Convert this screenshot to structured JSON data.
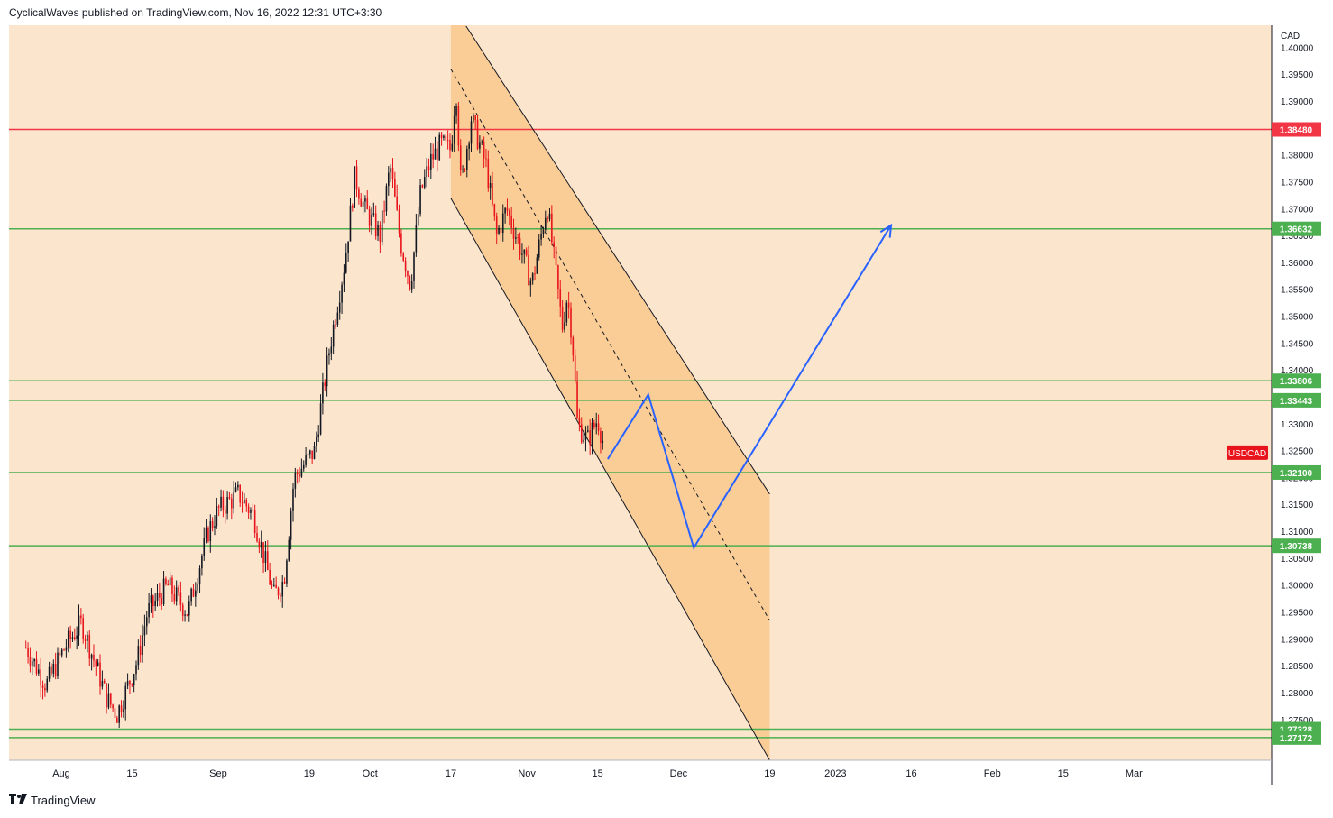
{
  "header": {
    "text": "CyclicalWaves published on TradingView.com, Nov 16, 2022 12:31 UTC+3:30"
  },
  "footer": {
    "brand": "TradingView",
    "logo_icon": "tradingview-logo-icon"
  },
  "colors": {
    "background": "#fbe5cd",
    "channel_fill": "#f9c98c",
    "red_level": "#f23645",
    "green_level": "#4caf50",
    "projection": "#2962ff",
    "candle_up": "#131722",
    "candle_down": "#e8131b",
    "symbol_label_bg": "#e8131b"
  },
  "chart_data": {
    "type": "candlestick",
    "symbol": "USDCAD",
    "currency": "CAD",
    "ylim": [
      1.2675,
      1.4035
    ],
    "y_ticks": [
      "1.40000",
      "1.39500",
      "1.39000",
      "1.38500",
      "1.38000",
      "1.37500",
      "1.37000",
      "1.36500",
      "1.36000",
      "1.35500",
      "1.35000",
      "1.34500",
      "1.34000",
      "1.33500",
      "1.33000",
      "1.32500",
      "1.32000",
      "1.31500",
      "1.31000",
      "1.30500",
      "1.30000",
      "1.29500",
      "1.29000",
      "1.28500",
      "1.28000",
      "1.27500"
    ],
    "x_ticks": [
      {
        "label": "Aug",
        "date": "2022-08-01"
      },
      {
        "label": "15",
        "date": "2022-08-15"
      },
      {
        "label": "Sep",
        "date": "2022-09-01"
      },
      {
        "label": "19",
        "date": "2022-09-19"
      },
      {
        "label": "Oct",
        "date": "2022-10-01"
      },
      {
        "label": "17",
        "date": "2022-10-17"
      },
      {
        "label": "Nov",
        "date": "2022-11-01"
      },
      {
        "label": "15",
        "date": "2022-11-15"
      },
      {
        "label": "Dec",
        "date": "2022-12-01"
      },
      {
        "label": "19",
        "date": "2022-12-19"
      },
      {
        "label": "2023",
        "date": "2023-01-01"
      },
      {
        "label": "16",
        "date": "2023-01-16"
      },
      {
        "label": "Feb",
        "date": "2023-02-01"
      },
      {
        "label": "15",
        "date": "2023-02-15"
      },
      {
        "label": "Mar",
        "date": "2023-03-01"
      }
    ],
    "price_path": [
      {
        "date": "2022-07-25",
        "value": 1.2885
      },
      {
        "date": "2022-07-29",
        "value": 1.2815
      },
      {
        "date": "2022-08-02",
        "value": 1.289
      },
      {
        "date": "2022-08-05",
        "value": 1.293
      },
      {
        "date": "2022-08-10",
        "value": 1.279
      },
      {
        "date": "2022-08-12",
        "value": 1.276
      },
      {
        "date": "2022-08-16",
        "value": 1.286
      },
      {
        "date": "2022-08-18",
        "value": 1.295
      },
      {
        "date": "2022-08-22",
        "value": 1.3
      },
      {
        "date": "2022-08-26",
        "value": 1.295
      },
      {
        "date": "2022-08-30",
        "value": 1.31
      },
      {
        "date": "2022-09-01",
        "value": 1.314
      },
      {
        "date": "2022-09-05",
        "value": 1.317
      },
      {
        "date": "2022-09-08",
        "value": 1.313
      },
      {
        "date": "2022-09-12",
        "value": 1.298
      },
      {
        "date": "2022-09-14",
        "value": 1.301
      },
      {
        "date": "2022-09-16",
        "value": 1.32
      },
      {
        "date": "2022-09-20",
        "value": 1.325
      },
      {
        "date": "2022-09-23",
        "value": 1.344
      },
      {
        "date": "2022-09-26",
        "value": 1.36
      },
      {
        "date": "2022-09-28",
        "value": 1.376
      },
      {
        "date": "2022-09-30",
        "value": 1.37
      },
      {
        "date": "2022-10-03",
        "value": 1.365
      },
      {
        "date": "2022-10-05",
        "value": 1.378
      },
      {
        "date": "2022-10-07",
        "value": 1.364
      },
      {
        "date": "2022-10-09",
        "value": 1.356
      },
      {
        "date": "2022-10-11",
        "value": 1.373
      },
      {
        "date": "2022-10-13",
        "value": 1.379
      },
      {
        "date": "2022-10-15",
        "value": 1.382
      },
      {
        "date": "2022-10-17",
        "value": 1.381
      },
      {
        "date": "2022-10-18",
        "value": 1.393
      },
      {
        "date": "2022-10-19",
        "value": 1.374
      },
      {
        "date": "2022-10-21",
        "value": 1.387
      },
      {
        "date": "2022-10-24",
        "value": 1.378
      },
      {
        "date": "2022-10-26",
        "value": 1.365
      },
      {
        "date": "2022-10-28",
        "value": 1.37
      },
      {
        "date": "2022-10-31",
        "value": 1.362
      },
      {
        "date": "2022-11-02",
        "value": 1.356
      },
      {
        "date": "2022-11-04",
        "value": 1.366
      },
      {
        "date": "2022-11-05",
        "value": 1.371
      },
      {
        "date": "2022-11-07",
        "value": 1.356
      },
      {
        "date": "2022-11-08",
        "value": 1.348
      },
      {
        "date": "2022-11-09",
        "value": 1.354
      },
      {
        "date": "2022-11-10",
        "value": 1.346
      },
      {
        "date": "2022-11-11",
        "value": 1.33
      },
      {
        "date": "2022-11-13",
        "value": 1.327
      },
      {
        "date": "2022-11-15",
        "value": 1.331
      },
      {
        "date": "2022-11-16",
        "value": 1.327
      }
    ],
    "levels": [
      {
        "value": 1.3848,
        "label": "1.38480",
        "color": "red"
      },
      {
        "value": 1.36632,
        "label": "1.36632",
        "color": "green"
      },
      {
        "value": 1.33806,
        "label": "1.33806",
        "color": "green"
      },
      {
        "value": 1.33443,
        "label": "1.33443",
        "color": "green"
      },
      {
        "value": 1.321,
        "label": "1.32100",
        "color": "green"
      },
      {
        "value": 1.30738,
        "label": "1.30738",
        "color": "green"
      },
      {
        "value": 1.27328,
        "label": "1.27328",
        "color": "green"
      },
      {
        "value": 1.27172,
        "label": "1.27172",
        "color": "green"
      }
    ],
    "channel": {
      "upper": [
        {
          "date": "2022-10-20",
          "value": 1.404
        },
        {
          "date": "2022-12-19",
          "value": 1.317
        }
      ],
      "lower": [
        {
          "date": "2022-10-17",
          "value": 1.372
        },
        {
          "date": "2022-12-19",
          "value": 1.2675
        }
      ],
      "mid": [
        {
          "date": "2022-10-17",
          "value": 1.396
        },
        {
          "date": "2022-12-19",
          "value": 1.2935
        }
      ],
      "shade_start": "2022-10-17",
      "shade_end": "2022-12-19"
    },
    "projection_path": [
      {
        "date": "2022-11-17",
        "value": 1.3235
      },
      {
        "date": "2022-11-25",
        "value": 1.3355
      },
      {
        "date": "2022-12-04",
        "value": 1.307
      },
      {
        "date": "2023-01-12",
        "value": 1.367
      }
    ],
    "symbol_label": "USDCAD",
    "symbol_label_value": 1.3247,
    "grid": false
  }
}
